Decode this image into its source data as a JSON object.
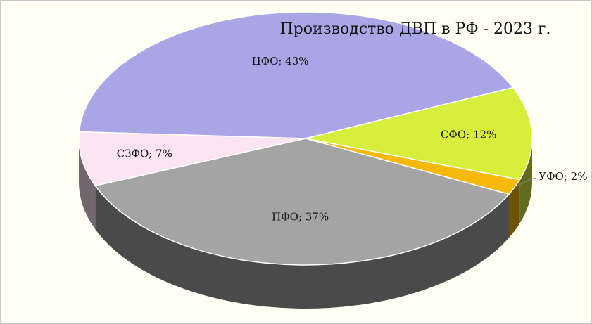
{
  "chart_data": {
    "type": "pie",
    "title": "Производство ДВП в РФ - 2023 г.",
    "slices": [
      {
        "name": "ЦФО",
        "value": 43,
        "label": "ЦФО; 43%",
        "color": "#a9a6e6"
      },
      {
        "name": "СФО",
        "value": 12,
        "label": "СФО; 12%",
        "color": "#d8ee3c"
      },
      {
        "name": "УФО",
        "value": 2,
        "label": "УФО; 2%",
        "color": "#f6b80a"
      },
      {
        "name": "ПФО",
        "value": 37,
        "label": "ПФО; 37%",
        "color": "#a4a4a4"
      },
      {
        "name": "СЗФО",
        "value": 7,
        "label": "СЗФО; 7%",
        "color": "#fce4f3"
      }
    ],
    "style": "3d-pie",
    "background": "#fffff3"
  }
}
